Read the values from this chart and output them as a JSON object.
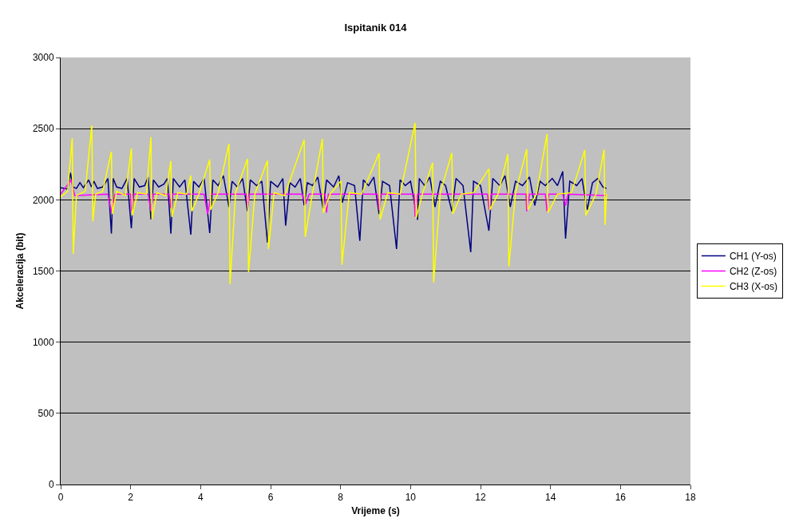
{
  "chart_data": {
    "type": "line",
    "title": "Ispitanik 014",
    "xlabel": "Vrijeme (s)",
    "ylabel": "Akceleracija (bit)",
    "xlim": [
      0,
      18
    ],
    "xticks": [
      0,
      2,
      4,
      6,
      8,
      10,
      12,
      14,
      16,
      18
    ],
    "ylim": [
      0,
      3000
    ],
    "yticks": [
      0,
      500,
      1000,
      1500,
      2000,
      2500,
      3000
    ],
    "grid": "y",
    "legend": "right",
    "marker": "none",
    "line_style": "solid",
    "series": [
      {
        "name": "CH1 (Y-os)",
        "color": "#000080",
        "x": [
          0,
          0.1,
          0.2,
          0.28,
          0.35,
          0.45,
          0.55,
          0.65,
          0.8,
          0.88,
          0.95,
          1.05,
          1.2,
          1.35,
          1.45,
          1.5,
          1.6,
          1.75,
          1.9,
          2.02,
          2.1,
          2.25,
          2.4,
          2.5,
          2.58,
          2.65,
          2.8,
          2.95,
          3.05,
          3.15,
          3.22,
          3.4,
          3.55,
          3.72,
          3.8,
          3.95,
          4.1,
          4.26,
          4.35,
          4.5,
          4.65,
          4.81,
          4.9,
          5.05,
          5.2,
          5.34,
          5.42,
          5.6,
          5.75,
          5.91,
          6.0,
          6.2,
          6.35,
          6.43,
          6.55,
          6.7,
          6.85,
          6.96,
          7.05,
          7.2,
          7.35,
          7.5,
          7.6,
          7.8,
          7.95,
          8.05,
          8.2,
          8.4,
          8.55,
          8.65,
          8.8,
          8.95,
          9.1,
          9.2,
          9.4,
          9.6,
          9.7,
          9.85,
          10.0,
          10.2,
          10.25,
          10.4,
          10.55,
          10.7,
          10.85,
          11.0,
          11.18,
          11.3,
          11.5,
          11.72,
          11.8,
          12.0,
          12.24,
          12.35,
          12.55,
          12.7,
          12.85,
          13.0,
          13.2,
          13.4,
          13.55,
          13.7,
          13.85,
          14.05,
          14.2,
          14.35,
          14.43,
          14.55,
          14.75,
          14.9,
          15.05,
          15.2,
          15.35,
          15.5,
          15.6
        ],
        "values": [
          2085,
          2080,
          2075,
          2190,
          2090,
          2080,
          2120,
          2085,
          2140,
          2090,
          2130,
          2080,
          2090,
          2150,
          1763,
          2150,
          2090,
          2080,
          2150,
          1800,
          2150,
          2090,
          2100,
          2160,
          1862,
          2140,
          2090,
          2110,
          2150,
          1763,
          2150,
          2090,
          2140,
          1755,
          2130,
          2090,
          2150,
          1767,
          2140,
          2100,
          2170,
          1950,
          2130,
          2090,
          2150,
          1920,
          2140,
          2100,
          2130,
          1700,
          2130,
          2090,
          2150,
          1819,
          2120,
          2090,
          2150,
          1960,
          2120,
          2100,
          2160,
          1940,
          2140,
          2090,
          2170,
          1980,
          2120,
          2100,
          1712,
          2140,
          2100,
          2160,
          1900,
          2130,
          2100,
          1654,
          2140,
          2100,
          2130,
          1860,
          2150,
          2100,
          2160,
          1950,
          2130,
          2100,
          1920,
          2150,
          2100,
          1632,
          2130,
          2100,
          1783,
          2150,
          2100,
          2170,
          1950,
          2130,
          2100,
          2160,
          1960,
          2130,
          2100,
          2150,
          2100,
          2200,
          1727,
          2130,
          2100,
          2150,
          1930,
          2120,
          2150,
          2090,
          2080
        ]
      },
      {
        "name": "CH2 (Z-os)",
        "color": "#ff00ff",
        "x": [
          0,
          0.3,
          0.4,
          1.35,
          1.45,
          1.55,
          2.0,
          2.02,
          2.1,
          2.5,
          2.58,
          2.65,
          3.1,
          3.15,
          3.2,
          4.1,
          4.2,
          4.3,
          5.3,
          5.34,
          5.4,
          6.9,
          7.0,
          7.1,
          7.55,
          7.6,
          7.65,
          9.05,
          9.1,
          9.15,
          10.1,
          10.13,
          10.2,
          12.2,
          12.25,
          12.3,
          13.3,
          13.32,
          13.4,
          13.85,
          13.9,
          13.95,
          14.35,
          14.43,
          14.5,
          15.6
        ],
        "values": [
          2040,
          2140,
          2030,
          2040,
          1910,
          2040,
          2040,
          1920,
          2040,
          2040,
          1920,
          2040,
          2040,
          1940,
          2040,
          2040,
          1900,
          2040,
          2040,
          1950,
          2040,
          2040,
          1970,
          2040,
          2040,
          1910,
          2040,
          2040,
          1930,
          2040,
          2040,
          1880,
          2040,
          2040,
          1930,
          2040,
          2040,
          1920,
          2040,
          2040,
          1920,
          2040,
          2040,
          1960,
          2040,
          2030
        ]
      },
      {
        "name": "CH3 (X-os)",
        "color": "#ffff00",
        "x": [
          0,
          0.2,
          0.33,
          0.36,
          0.45,
          0.7,
          0.89,
          0.92,
          1.0,
          1.2,
          1.45,
          1.48,
          1.6,
          1.85,
          2.02,
          2.05,
          2.2,
          2.45,
          2.58,
          2.61,
          2.75,
          3.0,
          3.15,
          3.18,
          3.35,
          3.6,
          3.72,
          3.75,
          3.95,
          4.26,
          4.29,
          4.5,
          4.81,
          4.84,
          5.0,
          5.34,
          5.37,
          5.55,
          5.91,
          5.94,
          6.1,
          6.4,
          6.96,
          6.99,
          7.2,
          7.48,
          7.51,
          7.7,
          8.01,
          8.04,
          8.25,
          8.6,
          9.1,
          9.13,
          9.35,
          9.7,
          10.13,
          10.16,
          10.35,
          10.63,
          10.66,
          10.85,
          11.18,
          11.21,
          11.45,
          11.8,
          12.24,
          12.27,
          12.5,
          12.78,
          12.81,
          13.0,
          13.32,
          13.35,
          13.6,
          13.9,
          13.93,
          14.2,
          14.6,
          14.98,
          15.01,
          15.3,
          15.53,
          15.56,
          15.6
        ],
        "values": [
          2020,
          2060,
          2434,
          1621,
          2030,
          2060,
          2523,
          1850,
          2040,
          2060,
          2338,
          1900,
          2060,
          2030,
          2361,
          1890,
          2050,
          2040,
          2441,
          1862,
          2050,
          2030,
          2273,
          1880,
          2050,
          2040,
          2170,
          1920,
          2040,
          2282,
          1930,
          2050,
          2394,
          1407,
          2050,
          2288,
          1492,
          2040,
          2275,
          1654,
          2050,
          2030,
          2422,
          1740,
          2050,
          2428,
          1908,
          2040,
          2133,
          1544,
          2050,
          2040,
          2327,
          1862,
          2050,
          2040,
          2540,
          1870,
          2050,
          2260,
          1419,
          2050,
          2329,
          1901,
          2040,
          2050,
          2217,
          1930,
          2040,
          2321,
          1531,
          2050,
          2355,
          1929,
          2040,
          2462,
          1910,
          2040,
          2050,
          2350,
          1890,
          2040,
          2352,
          1824,
          2040
        ]
      }
    ]
  }
}
